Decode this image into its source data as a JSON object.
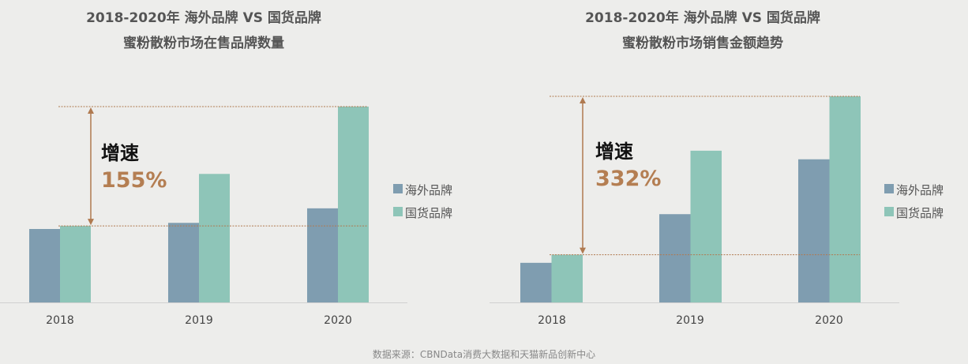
{
  "colors": {
    "overseas": "#7f9db0",
    "domestic": "#8ec5b8",
    "accent": "#b07a50",
    "background": "#ededeb"
  },
  "source": "数据来源：CBNData消费大数据和天猫新品创新中心",
  "chart_data": [
    {
      "type": "bar",
      "title": [
        "2018-2020年 海外品牌 VS 国货品牌",
        "蜜粉散粉市场在售品牌数量"
      ],
      "categories": [
        "2018",
        "2019",
        "2020"
      ],
      "series": [
        {
          "name": "海外品牌",
          "values": [
            96,
            104,
            123
          ]
        },
        {
          "name": "国货品牌",
          "values": [
            100,
            168,
            256
          ]
        }
      ],
      "value_note_unit": "relative index (国货品牌 2018 = 100), no axis printed",
      "ylim": [
        0,
        256
      ],
      "annotation": {
        "label": "增速",
        "value": "155%"
      },
      "legend": "right",
      "grid": false
    },
    {
      "type": "bar",
      "title": [
        "2018-2020年 海外品牌 VS 国货品牌",
        "蜜粉散粉市场销售金额趋势"
      ],
      "categories": [
        "2018",
        "2019",
        "2020"
      ],
      "series": [
        {
          "name": "海外品牌",
          "values": [
            83,
            185,
            300
          ]
        },
        {
          "name": "国货品牌",
          "values": [
            100,
            318,
            432
          ]
        }
      ],
      "ylim": [
        0,
        432
      ],
      "annotation": {
        "label": "增速",
        "value": "332%"
      },
      "legend": "right",
      "grid": false
    }
  ]
}
